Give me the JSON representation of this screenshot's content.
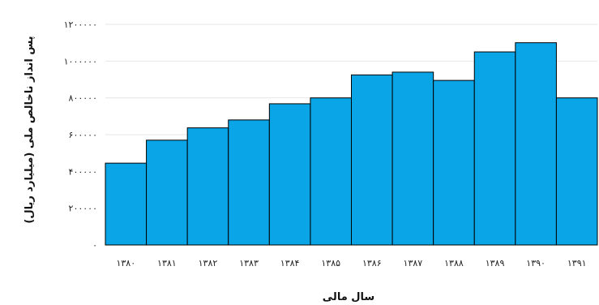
{
  "chart_data": {
    "type": "bar",
    "categories": [
      "۱۳۸۰",
      "۱۳۸۱",
      "۱۳۸۲",
      "۱۳۸۳",
      "۱۳۸۴",
      "۱۳۸۵",
      "۱۳۸۶",
      "۱۳۸۷",
      "۱۳۸۸",
      "۱۳۸۹",
      "۱۳۹۰",
      "۱۳۹۱"
    ],
    "values": [
      445000,
      570000,
      637000,
      680000,
      768000,
      800000,
      925000,
      940000,
      895000,
      1050000,
      1100000,
      800000
    ],
    "ylim": [
      0,
      1200000
    ],
    "yticks": [
      0,
      200000,
      400000,
      600000,
      800000,
      1000000,
      1200000
    ],
    "ytick_labels": [
      "۰",
      "۲۰۰۰۰۰",
      "۴۰۰۰۰۰",
      "۶۰۰۰۰۰",
      "۸۰۰۰۰۰",
      "۱۰۰۰۰۰۰",
      "۱۲۰۰۰۰۰"
    ],
    "xlabel": "سال مالی",
    "ylabel": "پس انداز ناخالص ملی (میلیارد ریال)",
    "title": "",
    "grid": true,
    "bar_color": "#0AA5E6",
    "bar_edge_color": "#000000"
  }
}
